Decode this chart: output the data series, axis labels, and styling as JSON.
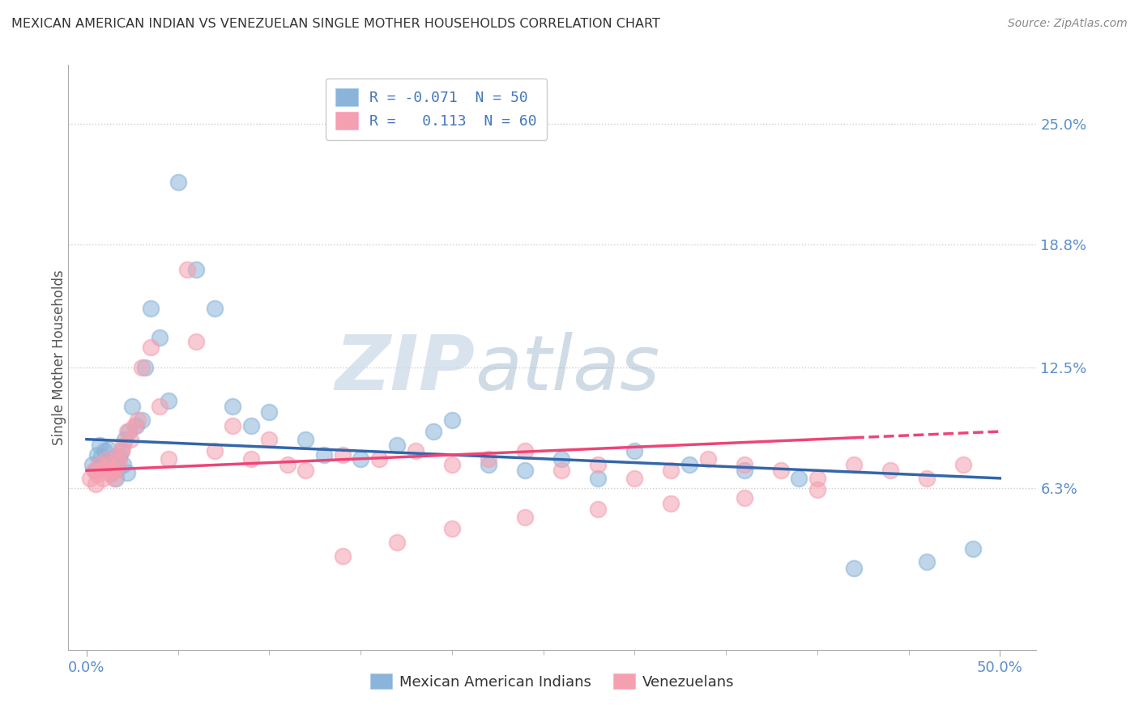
{
  "title": "MEXICAN AMERICAN INDIAN VS VENEZUELAN SINGLE MOTHER HOUSEHOLDS CORRELATION CHART",
  "source_text": "Source: ZipAtlas.com",
  "ylabel": "Single Mother Households",
  "watermark_zip": "ZIP",
  "watermark_atlas": "atlas",
  "legend_blue_label": "R = -0.071  N = 50",
  "legend_pink_label": "R =   0.113  N = 60",
  "x_tick_labels": [
    "0.0%",
    "50.0%"
  ],
  "x_tick_vals": [
    0.0,
    50.0
  ],
  "y_ticks": [
    0.063,
    0.125,
    0.188,
    0.25
  ],
  "y_tick_labels": [
    "6.3%",
    "12.5%",
    "18.8%",
    "25.0%"
  ],
  "xlim": [
    -1.0,
    52.0
  ],
  "ylim": [
    -0.02,
    0.28
  ],
  "blue_color": "#8ab4d9",
  "pink_color": "#f4a0b0",
  "blue_line_color": "#3366aa",
  "pink_line_color": "#ee4477",
  "blue_scatter_x": [
    0.3,
    0.5,
    0.6,
    0.7,
    0.8,
    0.9,
    1.0,
    1.1,
    1.2,
    1.3,
    1.4,
    1.5,
    1.6,
    1.7,
    1.8,
    1.9,
    2.0,
    2.1,
    2.2,
    2.3,
    2.5,
    2.7,
    3.0,
    3.2,
    3.5,
    4.0,
    4.5,
    5.0,
    6.0,
    7.0,
    8.0,
    9.0,
    10.0,
    12.0,
    13.0,
    15.0,
    17.0,
    19.0,
    20.0,
    22.0,
    24.0,
    26.0,
    28.0,
    30.0,
    33.0,
    36.0,
    39.0,
    42.0,
    46.0,
    48.5
  ],
  "blue_scatter_y": [
    0.075,
    0.072,
    0.08,
    0.085,
    0.079,
    0.076,
    0.082,
    0.077,
    0.083,
    0.078,
    0.071,
    0.074,
    0.068,
    0.073,
    0.079,
    0.082,
    0.075,
    0.088,
    0.071,
    0.092,
    0.105,
    0.095,
    0.098,
    0.125,
    0.155,
    0.14,
    0.108,
    0.22,
    0.175,
    0.155,
    0.105,
    0.095,
    0.102,
    0.088,
    0.08,
    0.078,
    0.085,
    0.092,
    0.098,
    0.075,
    0.072,
    0.078,
    0.068,
    0.082,
    0.075,
    0.072,
    0.068,
    0.022,
    0.025,
    0.032
  ],
  "pink_scatter_x": [
    0.2,
    0.4,
    0.5,
    0.6,
    0.7,
    0.8,
    0.9,
    1.0,
    1.1,
    1.2,
    1.3,
    1.4,
    1.5,
    1.6,
    1.7,
    1.8,
    1.9,
    2.0,
    2.2,
    2.4,
    2.6,
    2.8,
    3.0,
    3.5,
    4.0,
    4.5,
    5.5,
    6.0,
    7.0,
    8.0,
    9.0,
    10.0,
    11.0,
    12.0,
    14.0,
    16.0,
    18.0,
    20.0,
    22.0,
    24.0,
    26.0,
    28.0,
    30.0,
    32.0,
    34.0,
    36.0,
    38.0,
    40.0,
    42.0,
    44.0,
    46.0,
    48.0,
    14.0,
    17.0,
    20.0,
    24.0,
    28.0,
    32.0,
    36.0,
    40.0
  ],
  "pink_scatter_y": [
    0.068,
    0.072,
    0.065,
    0.07,
    0.075,
    0.072,
    0.068,
    0.073,
    0.078,
    0.075,
    0.07,
    0.072,
    0.068,
    0.073,
    0.079,
    0.076,
    0.082,
    0.085,
    0.092,
    0.088,
    0.095,
    0.098,
    0.125,
    0.135,
    0.105,
    0.078,
    0.175,
    0.138,
    0.082,
    0.095,
    0.078,
    0.088,
    0.075,
    0.072,
    0.08,
    0.078,
    0.082,
    0.075,
    0.078,
    0.082,
    0.072,
    0.075,
    0.068,
    0.072,
    0.078,
    0.075,
    0.072,
    0.068,
    0.075,
    0.072,
    0.068,
    0.075,
    0.028,
    0.035,
    0.042,
    0.048,
    0.052,
    0.055,
    0.058,
    0.062
  ],
  "bottom_legend": [
    {
      "label": "Mexican American Indians",
      "color": "#8ab4d9"
    },
    {
      "label": "Venezuelans",
      "color": "#f4a0b0"
    }
  ]
}
